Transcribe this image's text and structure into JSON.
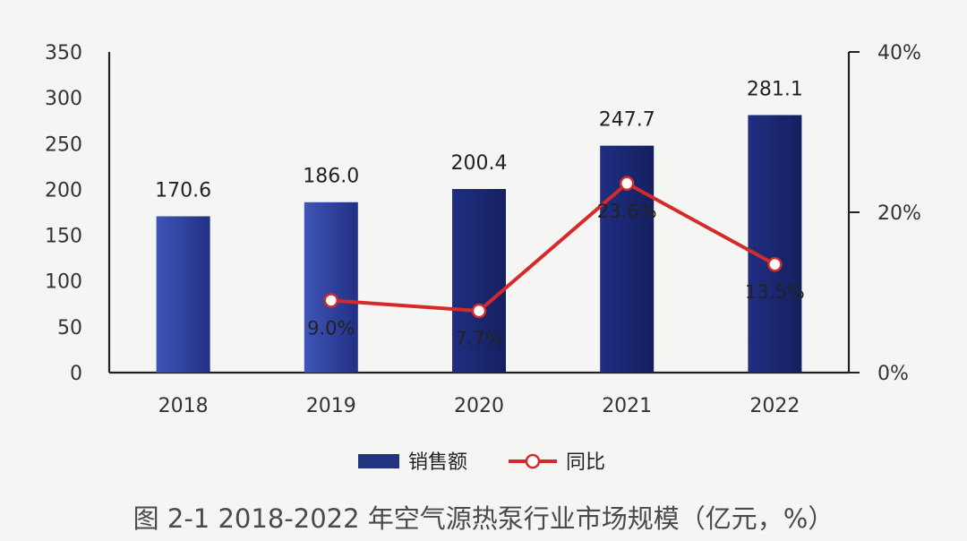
{
  "chart_data": {
    "type": "bar",
    "categories": [
      "2018",
      "2019",
      "2020",
      "2021",
      "2022"
    ],
    "series": [
      {
        "name": "销售额",
        "type": "bar",
        "axis": "left",
        "values": [
          170.6,
          186.0,
          200.4,
          247.7,
          281.1
        ],
        "labels": [
          "170.6",
          "186.0",
          "200.4",
          "247.7",
          "281.1"
        ],
        "color": "#22337f"
      },
      {
        "name": "同比",
        "type": "line",
        "axis": "right",
        "values": [
          null,
          9.0,
          7.7,
          23.6,
          13.5
        ],
        "labels": [
          "",
          "9.0%",
          "7.7%",
          "23.6%",
          "13.5%"
        ],
        "color": "#d42a2a"
      }
    ],
    "ylim": [
      0,
      350
    ],
    "yticks": [
      "0",
      "50",
      "100",
      "150",
      "200",
      "250",
      "300",
      "350"
    ],
    "y2lim": [
      0,
      40
    ],
    "y2ticks": [
      "0%",
      "20%",
      "40%"
    ],
    "legend": "bottom",
    "grid": false,
    "caption": "图 2-1 2018-2022 年空气源热泵行业市场规模（亿元，%）"
  }
}
